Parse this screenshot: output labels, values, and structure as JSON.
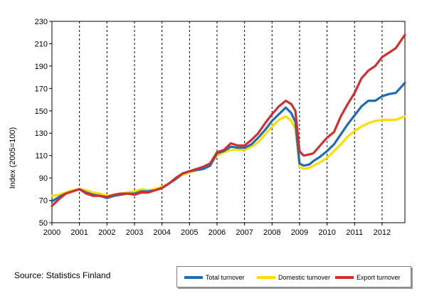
{
  "source_text": "Source: Statistics Finland",
  "chart_data": {
    "type": "line",
    "ylabel": "Index (2005=100)",
    "xlabel": "",
    "title": "",
    "ylim": [
      50,
      230
    ],
    "yticks": [
      50,
      70,
      90,
      110,
      130,
      150,
      170,
      190,
      210,
      230
    ],
    "xlim": [
      2000.0,
      2012.83
    ],
    "xticks": [
      "2000",
      "2001",
      "2002",
      "2003",
      "2004",
      "2005",
      "2006",
      "2007",
      "2008",
      "2009",
      "2010",
      "2011",
      "2012"
    ],
    "grid": "vertical dashed at year boundaries",
    "legend_position": "bottom-right",
    "series": [
      {
        "name": "Total turnover",
        "color": "#1f6db5",
        "x": [
          2000.0,
          2000.25,
          2000.5,
          2000.75,
          2001.0,
          2001.25,
          2001.5,
          2001.75,
          2002.0,
          2002.25,
          2002.5,
          2002.75,
          2003.0,
          2003.25,
          2003.5,
          2003.75,
          2004.0,
          2004.25,
          2004.5,
          2004.75,
          2005.0,
          2005.25,
          2005.5,
          2005.75,
          2006.0,
          2006.25,
          2006.5,
          2006.75,
          2007.0,
          2007.25,
          2007.5,
          2007.75,
          2008.0,
          2008.25,
          2008.5,
          2008.7,
          2008.85,
          2009.0,
          2009.15,
          2009.35,
          2009.5,
          2009.75,
          2010.0,
          2010.25,
          2010.5,
          2010.75,
          2011.0,
          2011.25,
          2011.5,
          2011.75,
          2012.0,
          2012.25,
          2012.5,
          2012.83
        ],
        "values": [
          69,
          73,
          76,
          78,
          80,
          77,
          75,
          74,
          72,
          74,
          75,
          76,
          76,
          78,
          78,
          79,
          81,
          85,
          89,
          94,
          96,
          97,
          98,
          101,
          112,
          114,
          118,
          117,
          117,
          120,
          126,
          133,
          141,
          147,
          153,
          148,
          140,
          103,
          101,
          102,
          105,
          109,
          114,
          120,
          129,
          138,
          146,
          154,
          159,
          159,
          163,
          165,
          166,
          175
        ]
      },
      {
        "name": "Domestic turnover",
        "color": "#ffdd00",
        "x": [
          2000.0,
          2000.25,
          2000.5,
          2000.75,
          2001.0,
          2001.25,
          2001.5,
          2001.75,
          2002.0,
          2002.25,
          2002.5,
          2002.75,
          2003.0,
          2003.25,
          2003.5,
          2003.75,
          2004.0,
          2004.25,
          2004.5,
          2004.75,
          2005.0,
          2005.25,
          2005.5,
          2005.75,
          2006.0,
          2006.25,
          2006.5,
          2006.75,
          2007.0,
          2007.25,
          2007.5,
          2007.75,
          2008.0,
          2008.25,
          2008.5,
          2008.7,
          2008.85,
          2009.0,
          2009.15,
          2009.35,
          2009.5,
          2009.75,
          2010.0,
          2010.25,
          2010.5,
          2010.75,
          2011.0,
          2011.25,
          2011.5,
          2011.75,
          2012.0,
          2012.25,
          2012.5,
          2012.83
        ],
        "values": [
          74,
          75,
          77,
          79,
          80,
          79,
          77,
          76,
          74,
          75,
          76,
          77,
          78,
          80,
          79,
          80,
          82,
          85,
          89,
          93,
          95,
          97,
          99,
          102,
          110,
          113,
          115,
          115,
          115,
          118,
          122,
          129,
          136,
          142,
          145,
          141,
          134,
          100,
          98,
          99,
          101,
          104,
          108,
          114,
          120,
          127,
          132,
          136,
          139,
          141,
          142,
          142,
          142,
          145
        ]
      },
      {
        "name": "Export turnover",
        "color": "#d32f2f",
        "x": [
          2000.0,
          2000.25,
          2000.5,
          2000.75,
          2001.0,
          2001.25,
          2001.5,
          2001.75,
          2002.0,
          2002.25,
          2002.5,
          2002.75,
          2003.0,
          2003.25,
          2003.5,
          2003.75,
          2004.0,
          2004.25,
          2004.5,
          2004.75,
          2005.0,
          2005.25,
          2005.5,
          2005.75,
          2006.0,
          2006.25,
          2006.5,
          2006.75,
          2007.0,
          2007.25,
          2007.5,
          2007.75,
          2008.0,
          2008.25,
          2008.5,
          2008.7,
          2008.85,
          2009.0,
          2009.15,
          2009.35,
          2009.5,
          2009.75,
          2010.0,
          2010.25,
          2010.5,
          2010.75,
          2011.0,
          2011.25,
          2011.5,
          2011.75,
          2012.0,
          2012.25,
          2012.5,
          2012.83
        ],
        "values": [
          65,
          71,
          76,
          78,
          80,
          76,
          74,
          74,
          73,
          75,
          76,
          76,
          75,
          77,
          77,
          79,
          81,
          85,
          90,
          94,
          96,
          98,
          100,
          103,
          113,
          115,
          121,
          119,
          119,
          124,
          130,
          139,
          147,
          154,
          159,
          156,
          150,
          114,
          110,
          111,
          112,
          119,
          126,
          131,
          145,
          156,
          166,
          179,
          186,
          190,
          198,
          202,
          206,
          218
        ]
      }
    ]
  }
}
